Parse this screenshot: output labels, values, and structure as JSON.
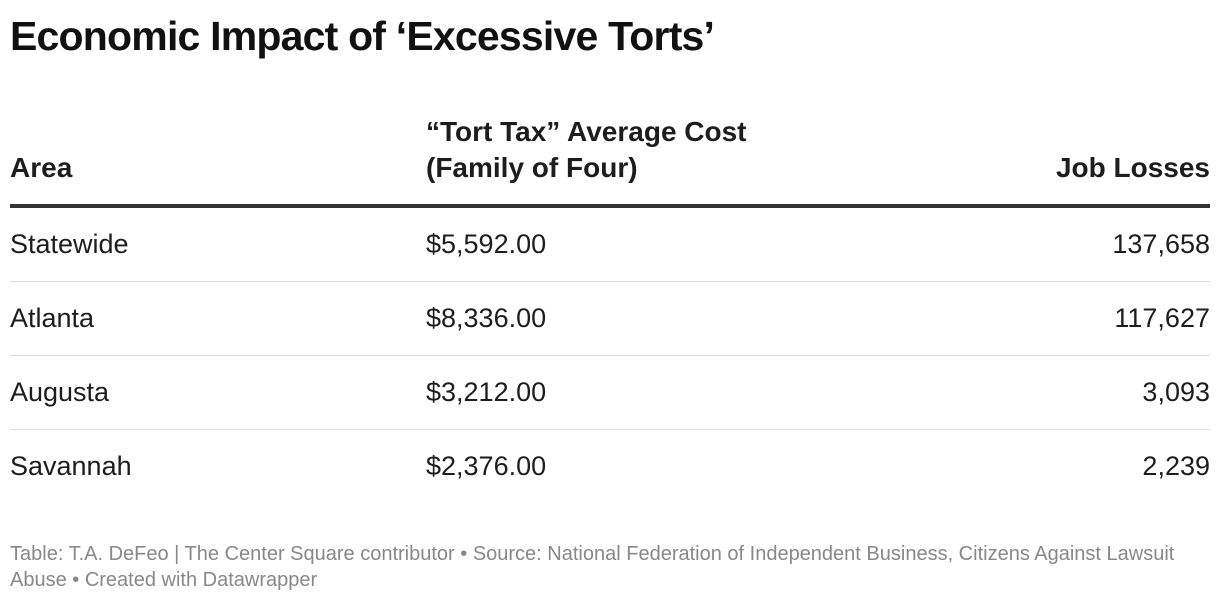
{
  "chart_data": {
    "type": "table",
    "title": "Economic Impact of ‘Excessive Torts’",
    "columns": [
      {
        "key": "area",
        "label": "Area"
      },
      {
        "key": "cost",
        "label_lines": [
          "“Tort Tax” Average Cost",
          "(Family of Four)"
        ]
      },
      {
        "key": "jobs",
        "label": "Job Losses"
      }
    ],
    "rows": [
      {
        "area": "Statewide",
        "cost": "$5,592.00",
        "jobs": "137,658"
      },
      {
        "area": "Atlanta",
        "cost": "$8,336.00",
        "jobs": "117,627"
      },
      {
        "area": "Augusta",
        "cost": "$3,212.00",
        "jobs": "3,093"
      },
      {
        "area": "Savannah",
        "cost": "$2,376.00",
        "jobs": "2,239"
      }
    ],
    "footer": "Table: T.A. DeFeo | The Center Square contributor • Source: National Federation of Independent Business, Citizens Against Lawsuit Abuse • Created with Datawrapper"
  }
}
